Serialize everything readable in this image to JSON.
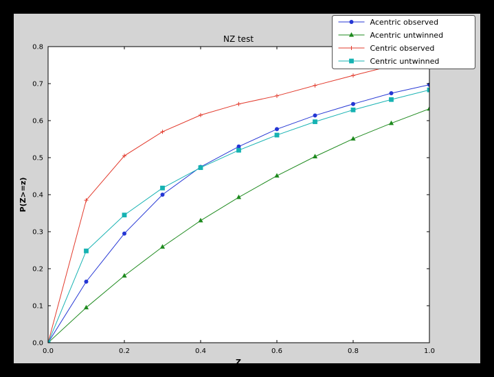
{
  "window": {
    "background": "#000000"
  },
  "colors": {
    "figure_bg": "#d4d4d4",
    "axes_bg": "#ffffff",
    "axis_line": "#000000",
    "legend_bg": "#ffffff",
    "legend_border": "#4d4d4d",
    "tick_color": "#000000"
  },
  "chart_data": {
    "type": "line",
    "title": "NZ test",
    "xlabel": "Z",
    "ylabel": "P(Z>=z)",
    "xlim": [
      0.0,
      1.0
    ],
    "ylim": [
      0.0,
      0.8
    ],
    "xticks": [
      0.0,
      0.2,
      0.4,
      0.6,
      0.8,
      1.0
    ],
    "yticks": [
      0.0,
      0.1,
      0.2,
      0.3,
      0.4,
      0.5,
      0.6,
      0.7,
      0.8
    ],
    "grid": false,
    "legend_position": "upper right",
    "x": [
      0.0,
      0.1,
      0.2,
      0.3,
      0.4,
      0.5,
      0.6,
      0.7,
      0.8,
      0.9,
      1.0
    ],
    "series": [
      {
        "name": "Acentric observed",
        "color": "#2436d4",
        "marker": "circle",
        "values": [
          0.0,
          0.165,
          0.295,
          0.4,
          0.475,
          0.53,
          0.577,
          0.614,
          0.645,
          0.674,
          0.697
        ]
      },
      {
        "name": "Acentric untwinned",
        "color": "#1e8a1e",
        "marker": "triangle",
        "values": [
          0.0,
          0.095,
          0.181,
          0.259,
          0.33,
          0.393,
          0.451,
          0.503,
          0.551,
          0.593,
          0.632
        ]
      },
      {
        "name": "Centric observed",
        "color": "#e2392b",
        "marker": "plus",
        "values": [
          0.0,
          0.385,
          0.505,
          0.57,
          0.615,
          0.645,
          0.667,
          0.695,
          0.722,
          0.748,
          0.775
        ]
      },
      {
        "name": "Centric untwinned",
        "color": "#16b2b2",
        "marker": "square",
        "values": [
          0.0,
          0.248,
          0.345,
          0.418,
          0.473,
          0.52,
          0.561,
          0.597,
          0.629,
          0.657,
          0.683
        ]
      }
    ]
  }
}
